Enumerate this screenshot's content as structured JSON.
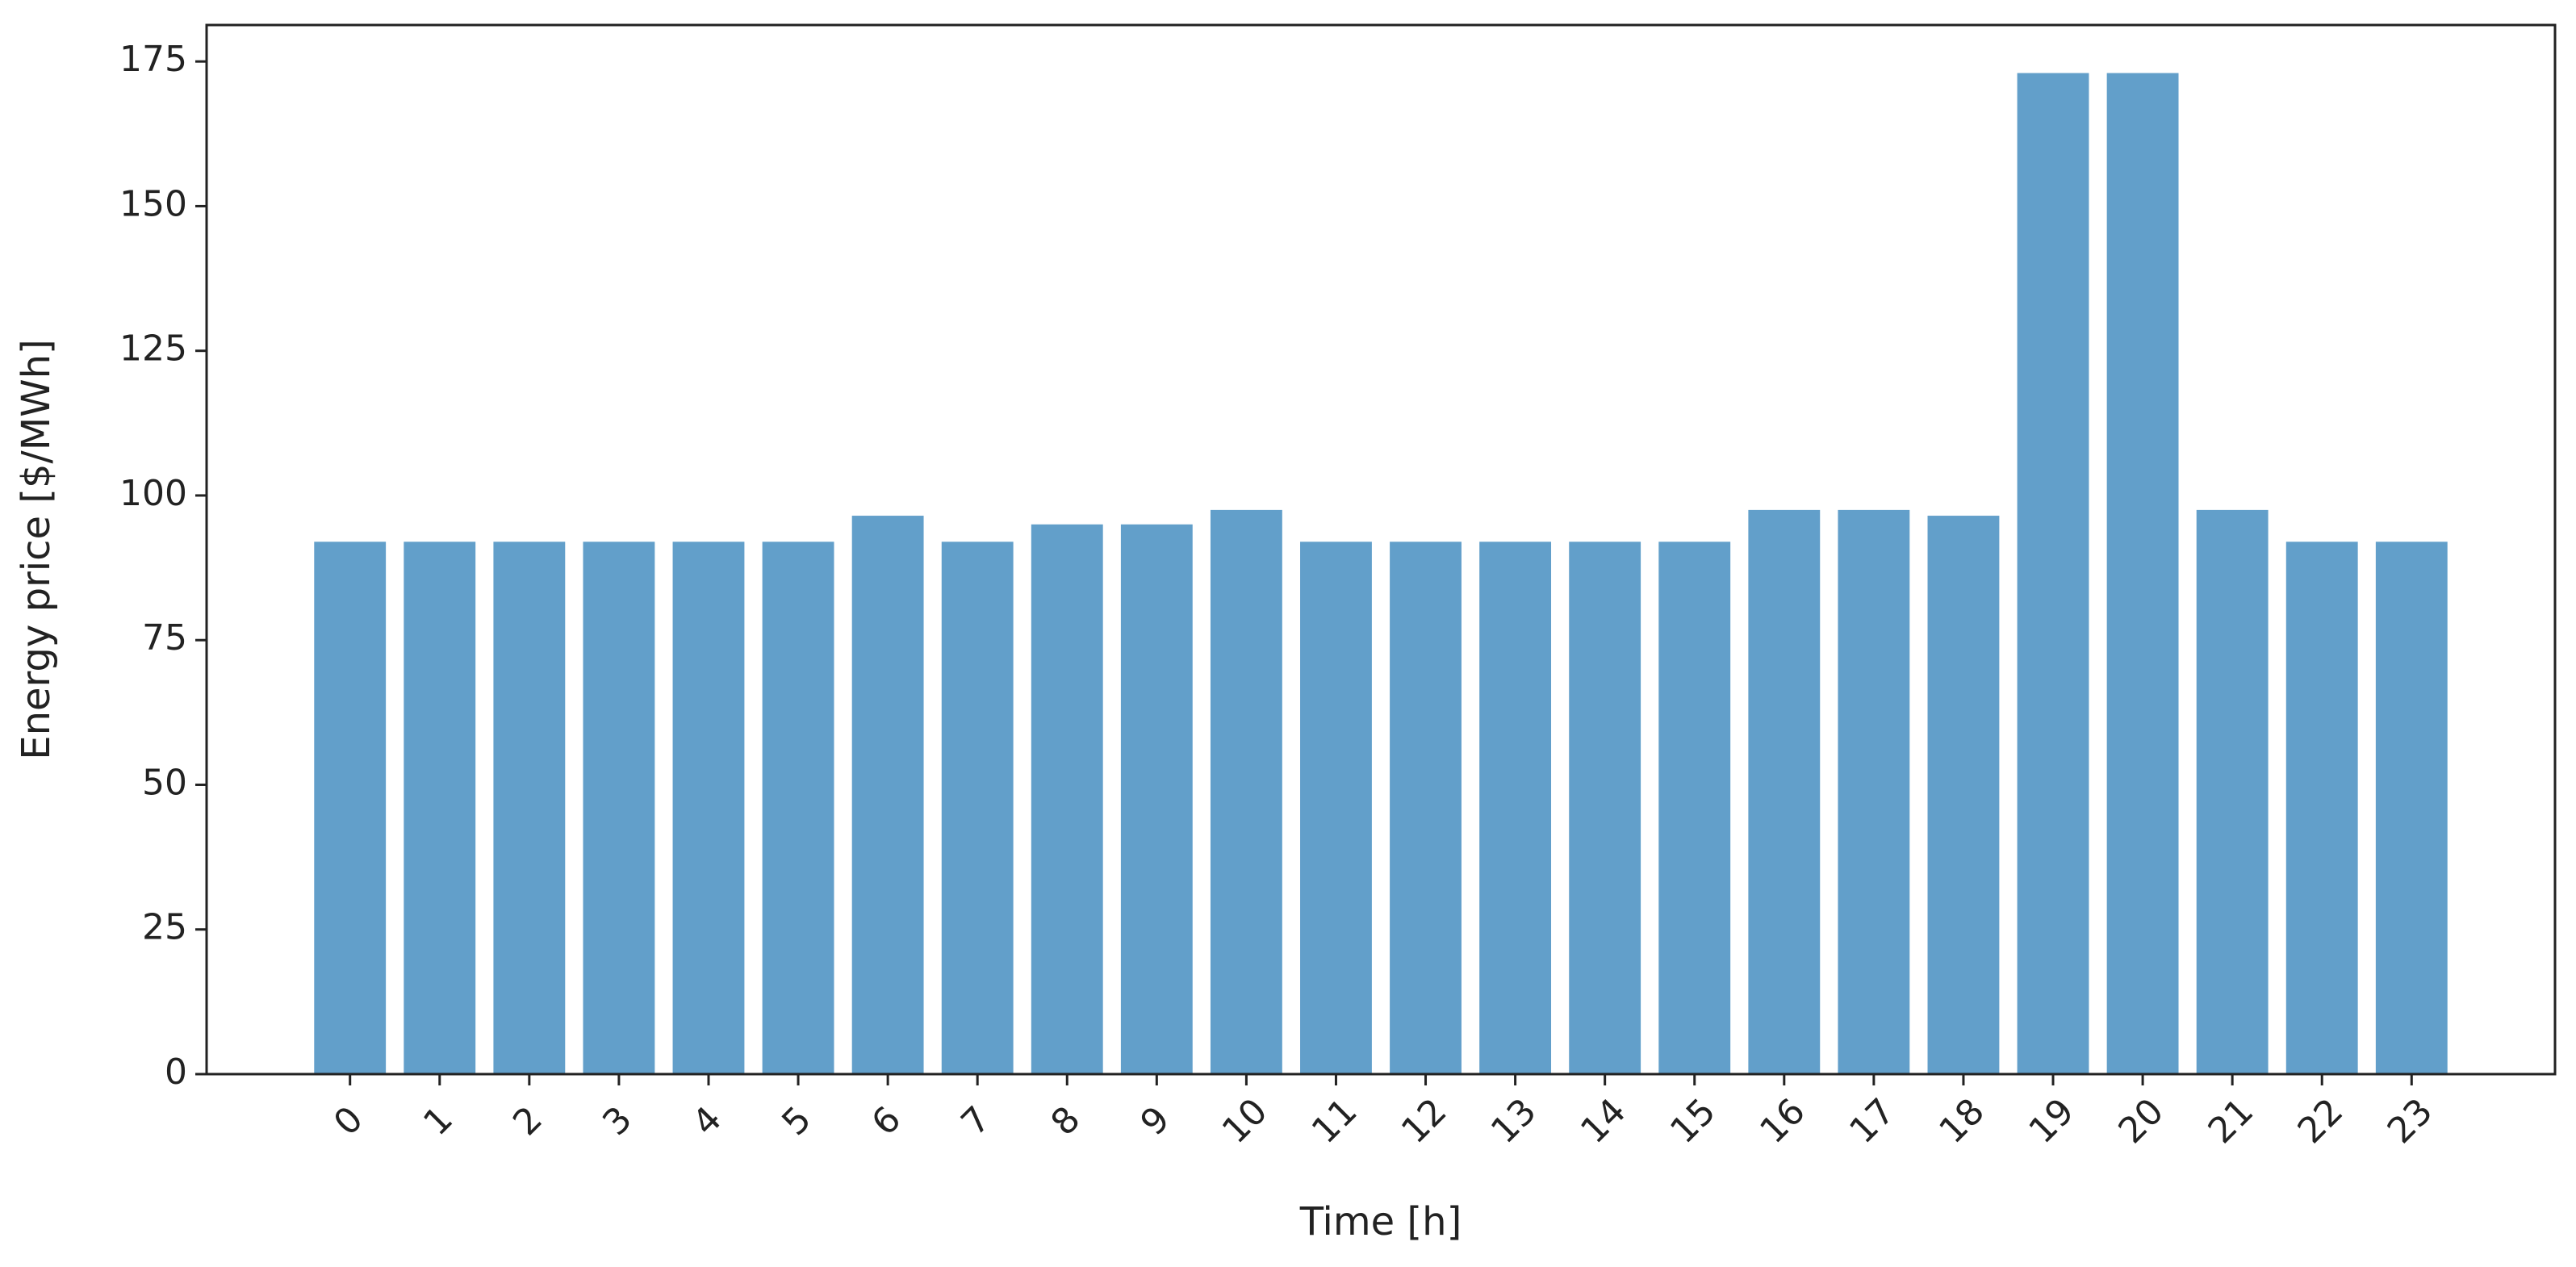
{
  "chart_data": {
    "type": "bar",
    "x_label": "Time [h]",
    "y_label": "Energy price [$/MWh]",
    "categories": [
      "0",
      "1",
      "2",
      "3",
      "4",
      "5",
      "6",
      "7",
      "8",
      "9",
      "10",
      "11",
      "12",
      "13",
      "14",
      "15",
      "16",
      "17",
      "18",
      "19",
      "20",
      "21",
      "22",
      "23"
    ],
    "values": [
      92,
      92,
      92,
      92,
      92,
      92,
      96.5,
      92,
      95,
      95,
      97.5,
      92,
      92,
      92,
      92,
      92,
      97.5,
      97.5,
      96.5,
      173,
      173,
      97.5,
      92,
      92
    ],
    "color": "#629fca",
    "ylim": [
      0,
      181.3
    ],
    "yticks": [
      0,
      25,
      50,
      75,
      100,
      125,
      150,
      175
    ],
    "grid": false
  }
}
